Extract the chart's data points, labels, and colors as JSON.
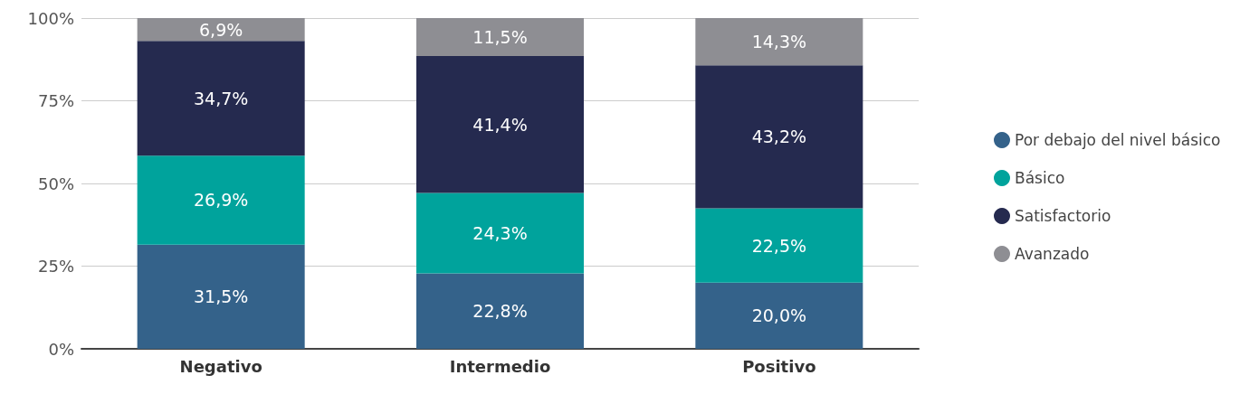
{
  "chart_data": {
    "type": "bar",
    "stacked": true,
    "categories": [
      "Negativo",
      "Intermedio",
      "Positivo"
    ],
    "series": [
      {
        "name": "Por debajo del nivel básico",
        "color": "#34628a",
        "values": [
          31.5,
          22.8,
          20.0
        ],
        "value_labels": [
          "31,5%",
          "22,8%",
          "20,0%"
        ]
      },
      {
        "name": "Básico",
        "color": "#00a39c",
        "values": [
          26.9,
          24.3,
          22.5
        ],
        "value_labels": [
          "26,9%",
          "24,3%",
          "22,5%"
        ]
      },
      {
        "name": "Satisfactorio",
        "color": "#252a4f",
        "values": [
          34.7,
          41.4,
          43.2
        ],
        "value_labels": [
          "34,7%",
          "41,4%",
          "43,2%"
        ]
      },
      {
        "name": "Avanzado",
        "color": "#8e8e93",
        "values": [
          6.9,
          11.5,
          14.3
        ],
        "value_labels": [
          "6,9%",
          "11,5%",
          "14,3%"
        ]
      }
    ],
    "ylim": [
      0,
      100
    ],
    "yticks": [
      {
        "value": 0,
        "label": "0%"
      },
      {
        "value": 25,
        "label": "25%"
      },
      {
        "value": 50,
        "label": "50%"
      },
      {
        "value": 75,
        "label": "75%"
      },
      {
        "value": 100,
        "label": "100%"
      }
    ],
    "grid": "y",
    "legend": "right"
  }
}
